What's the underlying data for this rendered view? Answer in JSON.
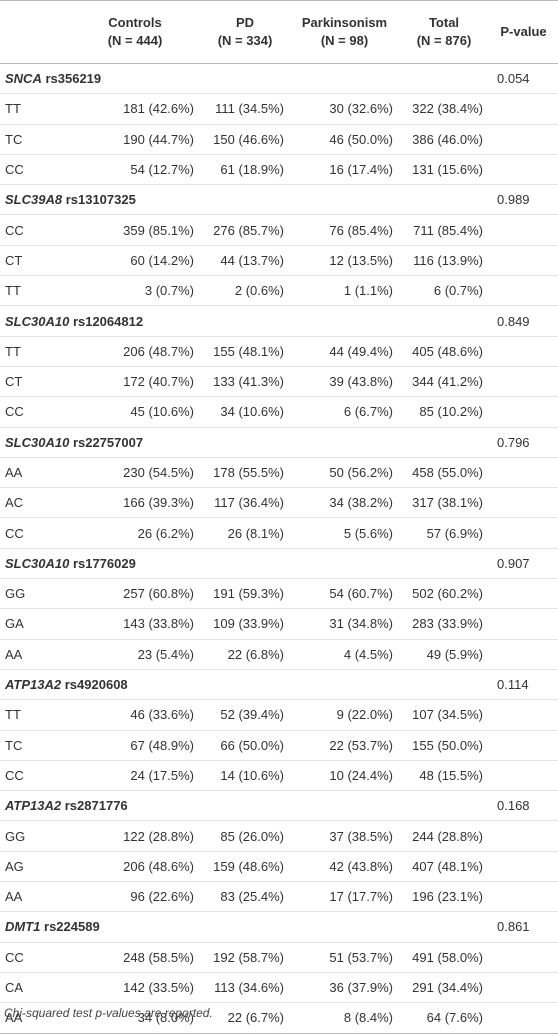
{
  "table": {
    "header": [
      {
        "label": "Controls",
        "sub": "(N = 444)"
      },
      {
        "label": "PD",
        "sub": "(N = 334)"
      },
      {
        "label": "Parkinsonism",
        "sub": "(N = 98)"
      },
      {
        "label": "Total",
        "sub": "(N = 876)"
      },
      {
        "label": "P-value"
      }
    ],
    "groups": [
      {
        "gene": "SNCA",
        "snp": "rs356219",
        "p": "0.054",
        "rows": [
          [
            "TT",
            "181 (42.6%)",
            "111 (34.5%)",
            "30 (32.6%)",
            "322 (38.4%)"
          ],
          [
            "TC",
            "190 (44.7%)",
            "150 (46.6%)",
            "46 (50.0%)",
            "386 (46.0%)"
          ],
          [
            "CC",
            "54 (12.7%)",
            "61 (18.9%)",
            "16 (17.4%)",
            "131 (15.6%)"
          ]
        ]
      },
      {
        "gene": "SLC39A8",
        "snp": "rs13107325",
        "p": "0.989",
        "rows": [
          [
            "CC",
            "359 (85.1%)",
            "276 (85.7%)",
            "76 (85.4%)",
            "711 (85.4%)"
          ],
          [
            "CT",
            "60 (14.2%)",
            "44 (13.7%)",
            "12 (13.5%)",
            "116 (13.9%)"
          ],
          [
            "TT",
            "3 (0.7%)",
            "2 (0.6%)",
            "1 (1.1%)",
            "6 (0.7%)"
          ]
        ]
      },
      {
        "gene": "SLC30A10",
        "snp": "rs12064812",
        "p": "0.849",
        "rows": [
          [
            "TT",
            "206 (48.7%)",
            "155 (48.1%)",
            "44 (49.4%)",
            "405 (48.6%)"
          ],
          [
            "CT",
            "172 (40.7%)",
            "133 (41.3%)",
            "39 (43.8%)",
            "344 (41.2%)"
          ],
          [
            "CC",
            "45 (10.6%)",
            "34 (10.6%)",
            "6 (6.7%)",
            "85 (10.2%)"
          ]
        ]
      },
      {
        "gene": "SLC30A10",
        "snp": "rs22757007",
        "p": "0.796",
        "rows": [
          [
            "AA",
            "230 (54.5%)",
            "178 (55.5%)",
            "50 (56.2%)",
            "458 (55.0%)"
          ],
          [
            "AC",
            "166 (39.3%)",
            "117 (36.4%)",
            "34 (38.2%)",
            "317 (38.1%)"
          ],
          [
            "CC",
            "26 (6.2%)",
            "26 (8.1%)",
            "5 (5.6%)",
            "57 (6.9%)"
          ]
        ]
      },
      {
        "gene": "SLC30A10",
        "snp": "rs1776029",
        "p": "0.907",
        "rows": [
          [
            "GG",
            "257 (60.8%)",
            "191 (59.3%)",
            "54 (60.7%)",
            "502 (60.2%)"
          ],
          [
            "GA",
            "143 (33.8%)",
            "109 (33.9%)",
            "31 (34.8%)",
            "283 (33.9%)"
          ],
          [
            "AA",
            "23 (5.4%)",
            "22 (6.8%)",
            "4 (4.5%)",
            "49 (5.9%)"
          ]
        ]
      },
      {
        "gene": "ATP13A2",
        "snp": "rs4920608",
        "p": "0.114",
        "rows": [
          [
            "TT",
            "46 (33.6%)",
            "52 (39.4%)",
            "9 (22.0%)",
            "107 (34.5%)"
          ],
          [
            "TC",
            "67 (48.9%)",
            "66 (50.0%)",
            "22 (53.7%)",
            "155 (50.0%)"
          ],
          [
            "CC",
            "24 (17.5%)",
            "14 (10.6%)",
            "10 (24.4%)",
            "48 (15.5%)"
          ]
        ]
      },
      {
        "gene": "ATP13A2",
        "snp": "rs2871776",
        "p": "0.168",
        "rows": [
          [
            "GG",
            "122 (28.8%)",
            "85 (26.0%)",
            "37 (38.5%)",
            "244 (28.8%)"
          ],
          [
            "AG",
            "206 (48.6%)",
            "159 (48.6%)",
            "42 (43.8%)",
            "407 (48.1%)"
          ],
          [
            "AA",
            "96 (22.6%)",
            "83 (25.4%)",
            "17 (17.7%)",
            "196 (23.1%)"
          ]
        ]
      },
      {
        "gene": "DMT1",
        "snp": "rs224589",
        "p": "0.861",
        "rows": [
          [
            "CC",
            "248 (58.5%)",
            "192 (58.7%)",
            "51 (53.7%)",
            "491 (58.0%)"
          ],
          [
            "CA",
            "142 (33.5%)",
            "113 (34.6%)",
            "36 (37.9%)",
            "291 (34.4%)"
          ],
          [
            "AA",
            "34 (8.0%)",
            "22 (6.7%)",
            "8 (8.4%)",
            "64 (7.6%)"
          ]
        ]
      }
    ],
    "footnote": "Chi-squared test p-values are reported."
  }
}
